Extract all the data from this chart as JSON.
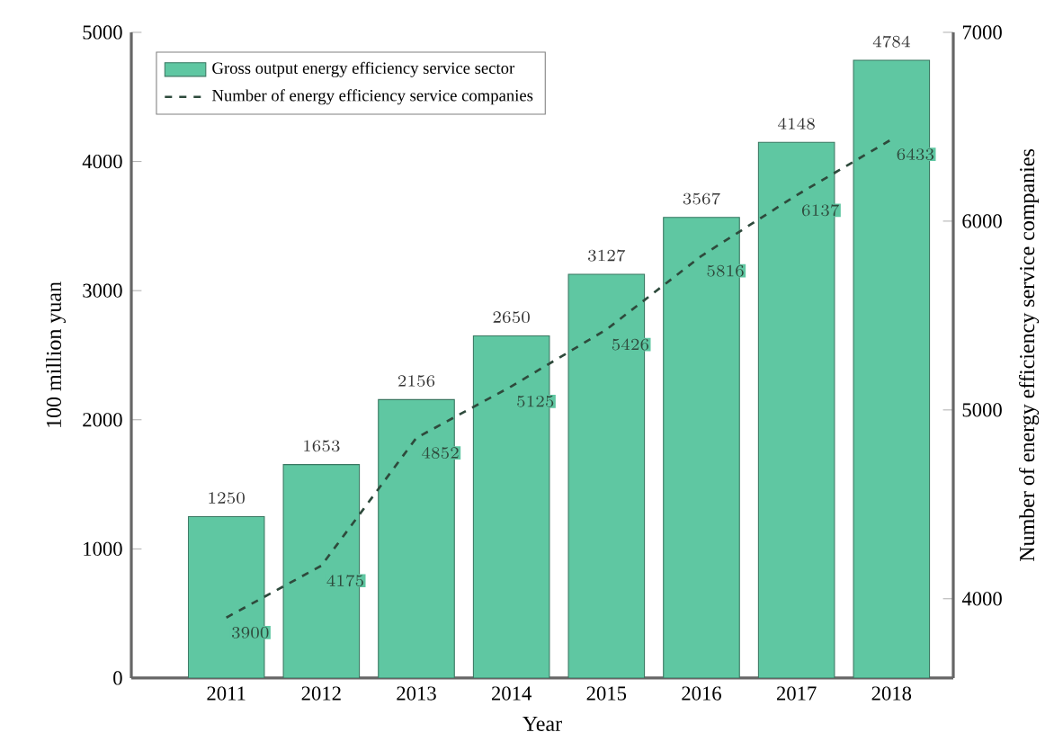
{
  "chart_data": {
    "type": "bar",
    "xlabel": "Year",
    "ylabel": "100 million yuan",
    "y2label": "Number of energy efficiency service companies",
    "categories": [
      "2011",
      "2012",
      "2013",
      "2014",
      "2015",
      "2016",
      "2017",
      "2018"
    ],
    "series": [
      {
        "name": "Gross output energy efficiency service sector",
        "color": "#5fc7a2",
        "values": [
          1250,
          1653,
          2156,
          2650,
          3127,
          3567,
          4148,
          4784
        ]
      },
      {
        "name": "Number of energy efficiency service companies",
        "type": "line",
        "axis": "y2",
        "line_style": "dashed",
        "color": "#2e4a3c",
        "values": [
          3900,
          4175,
          4852,
          5125,
          5426,
          5816,
          6137,
          6433
        ]
      }
    ],
    "ylim": [
      0,
      5000
    ],
    "yticks": [
      0,
      1000,
      2000,
      3000,
      4000,
      5000
    ],
    "y2lim": [
      3580,
      7000
    ],
    "y2ticks": [
      4000,
      5000,
      6000,
      7000
    ],
    "legend": "top left",
    "data_labels": true
  }
}
